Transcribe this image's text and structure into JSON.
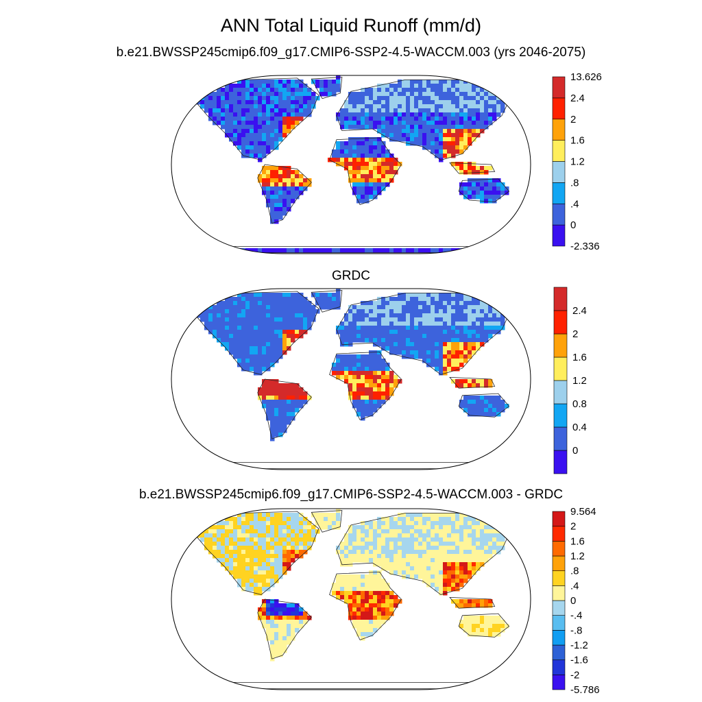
{
  "title": "ANN Total Liquid Runoff (mm/d)",
  "panels": [
    {
      "id": "model",
      "subtitle": "b.e21.BWSSP245cmip6.f09_g17.CMIP6-SSP2-4.5-WACCM.003 (yrs 2046-2075)",
      "colorbar": {
        "colors": [
          "#3a10f0",
          "#3d63dc",
          "#12a6f3",
          "#9dd0ec",
          "#ffee5c",
          "#ffa20a",
          "#ff2100",
          "#d42a2a"
        ],
        "labels": [
          "-2.336",
          "0",
          ".4",
          ".8",
          "1.2",
          "1.6",
          "2",
          "2.4",
          "13.626"
        ]
      }
    },
    {
      "id": "obs",
      "subtitle": "GRDC",
      "colorbar": {
        "colors": [
          "#3a10f0",
          "#3d63dc",
          "#12a6f3",
          "#9dd0ec",
          "#ffee5c",
          "#ffa20a",
          "#ff2100",
          "#d42a2a"
        ],
        "labels": [
          "0",
          "0.4",
          "0.8",
          "1.2",
          "1.6",
          "2",
          "2.4"
        ]
      }
    },
    {
      "id": "diff",
      "subtitle": "b.e21.BWSSP245cmip6.f09_g17.CMIP6-SSP2-4.5-WACCM.003 - GRDC",
      "colorbar": {
        "colors": [
          "#3a10f0",
          "#2135d9",
          "#2d61d6",
          "#119ef2",
          "#59bdf0",
          "#a6d6ee",
          "#fff59a",
          "#ffd321",
          "#ffa20a",
          "#ff6a00",
          "#ff2a00",
          "#d41818"
        ],
        "labels": [
          "-5.786",
          "-2",
          "-1.6",
          "-1.2",
          "-.8",
          "-.4",
          "0",
          ".4",
          ".8",
          "1.2",
          "1.6",
          "2",
          "9.564"
        ]
      }
    }
  ]
}
